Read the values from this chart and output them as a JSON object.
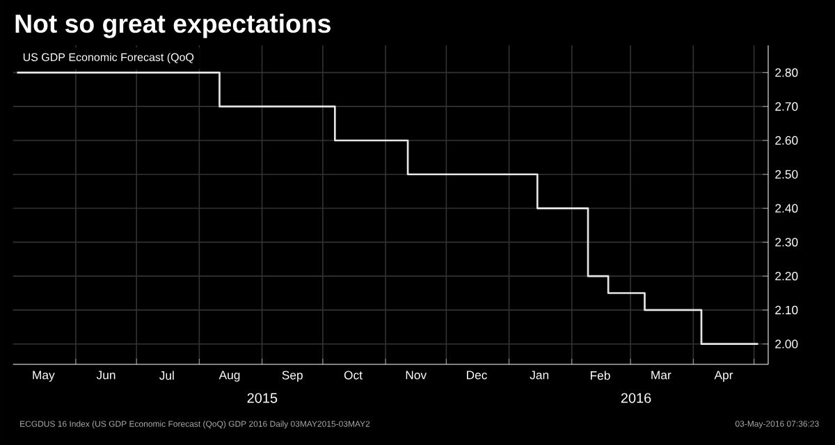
{
  "chart_data": {
    "type": "step",
    "title": "Not so great expectations",
    "x": [
      "2015-05-03",
      "2015-08-11",
      "2015-10-07",
      "2015-11-12",
      "2016-01-15",
      "2016-02-09",
      "2016-02-19",
      "2016-03-08",
      "2016-04-05",
      "2016-05-03"
    ],
    "series": [
      {
        "name": "US GDP Economic Forecast (QoQ",
        "color": "#e6e6e6",
        "values": [
          2.8,
          2.7,
          2.6,
          2.5,
          2.4,
          2.2,
          2.15,
          2.1,
          2.0,
          2.0
        ]
      }
    ],
    "xlim": [
      "2015-05-01",
      "2016-05-08"
    ],
    "xticks": [
      {
        "value": "2015-06-01",
        "label": null
      },
      {
        "value": "2015-07-01",
        "label": null
      },
      {
        "value": "2015-08-01",
        "label": null
      },
      {
        "value": "2015-09-01",
        "label": null
      },
      {
        "value": "2015-10-01",
        "label": null
      },
      {
        "value": "2015-11-01",
        "label": null
      },
      {
        "value": "2015-12-01",
        "label": null
      },
      {
        "value": "2016-01-01",
        "label": null
      },
      {
        "value": "2016-02-01",
        "label": null
      },
      {
        "value": "2016-03-01",
        "label": null
      },
      {
        "value": "2016-04-01",
        "label": null
      },
      {
        "value": "2016-05-01",
        "label": null
      },
      {
        "value": "2015-05-16",
        "label": "May"
      },
      {
        "value": "2015-06-16",
        "label": "Jun"
      },
      {
        "value": "2015-07-16",
        "label": "Jul"
      },
      {
        "value": "2015-08-16",
        "label": "Aug"
      },
      {
        "value": "2015-09-16",
        "label": "Sep"
      },
      {
        "value": "2015-10-16",
        "label": "Oct"
      },
      {
        "value": "2015-11-16",
        "label": "Nov"
      },
      {
        "value": "2015-12-16",
        "label": "Dec"
      },
      {
        "value": "2016-01-16",
        "label": "Jan"
      },
      {
        "value": "2016-02-15",
        "label": "Feb"
      },
      {
        "value": "2016-03-16",
        "label": "Mar"
      },
      {
        "value": "2016-04-16",
        "label": "Apr"
      }
    ],
    "ylim": [
      1.94,
      2.88
    ],
    "yticks": [
      {
        "value": 2.0,
        "label": "2.00"
      },
      {
        "value": 2.1,
        "label": "2.10"
      },
      {
        "value": 2.2,
        "label": "2.20"
      },
      {
        "value": 2.3,
        "label": "2.30"
      },
      {
        "value": 2.4,
        "label": "2.40"
      },
      {
        "value": 2.5,
        "label": "2.50"
      },
      {
        "value": 2.6,
        "label": "2.60"
      },
      {
        "value": 2.7,
        "label": "2.70"
      },
      {
        "value": 2.8,
        "label": "2.80"
      }
    ],
    "grid": true,
    "legend": "top left",
    "annotations": [
      "2015",
      "2016",
      "ECGDUS 16 Index (US GDP Economic Forecast (QoQ) GDP 2016 Daily 03MAY2015-03MAY2",
      "03-May-2016 07:36:23"
    ]
  }
}
